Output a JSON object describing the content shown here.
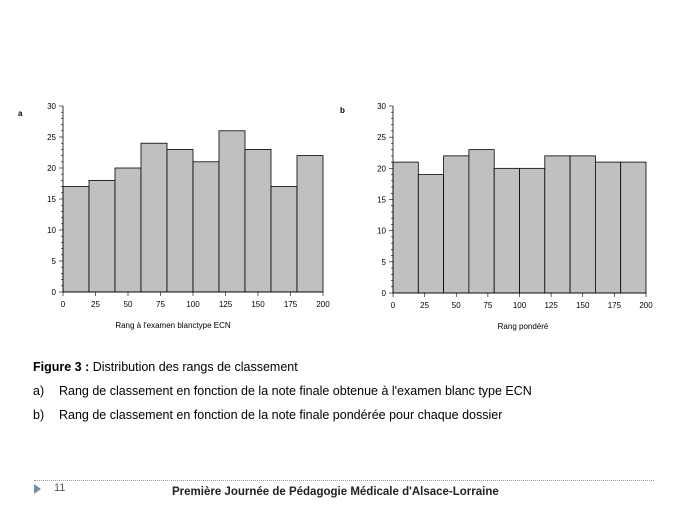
{
  "chart_data": [
    {
      "panel_label": "a",
      "type": "bar",
      "bin_width": 20,
      "x_start": 0,
      "values": [
        17,
        18,
        20,
        24,
        23,
        21,
        26,
        23,
        17,
        22
      ],
      "xlabel": "Rang à l'examen blanctype ECN",
      "ylabel": "",
      "xlim": [
        0,
        200
      ],
      "ylim": [
        0,
        30
      ],
      "x_ticks": [
        0,
        25,
        50,
        75,
        100,
        125,
        150,
        175,
        200
      ],
      "y_ticks": [
        0,
        5,
        10,
        15,
        20,
        25,
        30
      ],
      "bar_color": "#c0c0c0"
    },
    {
      "panel_label": "b",
      "type": "bar",
      "bin_width": 20,
      "x_start": 0,
      "values": [
        21,
        19,
        22,
        23,
        20,
        20,
        22,
        22,
        21,
        21
      ],
      "xlabel": "Rang pondéré",
      "ylabel": "",
      "xlim": [
        0,
        200
      ],
      "ylim": [
        0,
        30
      ],
      "x_ticks": [
        0,
        25,
        50,
        75,
        100,
        125,
        150,
        175,
        200
      ],
      "y_ticks": [
        0,
        5,
        10,
        15,
        20,
        25,
        30
      ],
      "bar_color": "#c0c0c0"
    }
  ],
  "caption": {
    "title_bold": "Figure 3 :",
    "title_text": " Distribution des rangs de classement",
    "item_a_letter": "a)",
    "item_a_text": "Rang de classement en fonction de la note finale obtenue à l'examen blanc type ECN",
    "item_b_letter": "b)",
    "item_b_text": "Rang de classement en fonction de la note finale pondérée pour chaque dossier"
  },
  "footer": {
    "page_number": "11",
    "text": "Première Journée de Pédagogie Médicale d'Alsace-Lorraine"
  },
  "colors": {
    "bar_fill": "#c0c0c0",
    "accent_chevron": "#6d8fa8"
  }
}
